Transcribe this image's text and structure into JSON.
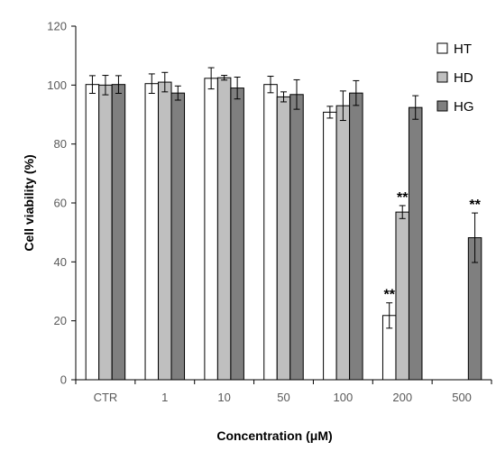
{
  "chart_data": {
    "type": "bar",
    "title": "",
    "xlabel": "Concentration (μM)",
    "ylabel": "Cell viability (%)",
    "ylim": [
      0,
      120
    ],
    "yticks": [
      0,
      20,
      40,
      60,
      80,
      100,
      120
    ],
    "categories": [
      "CTR",
      "1",
      "10",
      "50",
      "100",
      "200",
      "500"
    ],
    "legend_position": "top-right",
    "grid": false,
    "series": [
      {
        "name": "HT",
        "color": "#ffffff",
        "values": [
          100.2,
          100.5,
          102.3,
          100.2,
          90.8,
          21.8,
          null
        ],
        "errors": [
          3.0,
          3.3,
          3.6,
          2.8,
          2.0,
          4.3,
          null
        ],
        "annotations": [
          null,
          null,
          null,
          null,
          null,
          "**",
          null
        ]
      },
      {
        "name": "HD",
        "color": "#bfbfbf",
        "values": [
          100.0,
          101.0,
          102.5,
          96.0,
          93.0,
          56.9,
          null
        ],
        "errors": [
          3.3,
          3.3,
          0.8,
          1.7,
          5.0,
          2.2,
          null
        ],
        "annotations": [
          null,
          null,
          null,
          null,
          null,
          "**",
          null
        ]
      },
      {
        "name": "HG",
        "color": "#7f7f7f",
        "values": [
          100.2,
          97.3,
          99.0,
          96.8,
          97.3,
          92.4,
          48.2
        ],
        "errors": [
          3.0,
          2.4,
          3.7,
          5.0,
          4.2,
          4.0,
          8.4
        ],
        "annotations": [
          null,
          null,
          null,
          null,
          null,
          null,
          "**"
        ]
      }
    ]
  }
}
